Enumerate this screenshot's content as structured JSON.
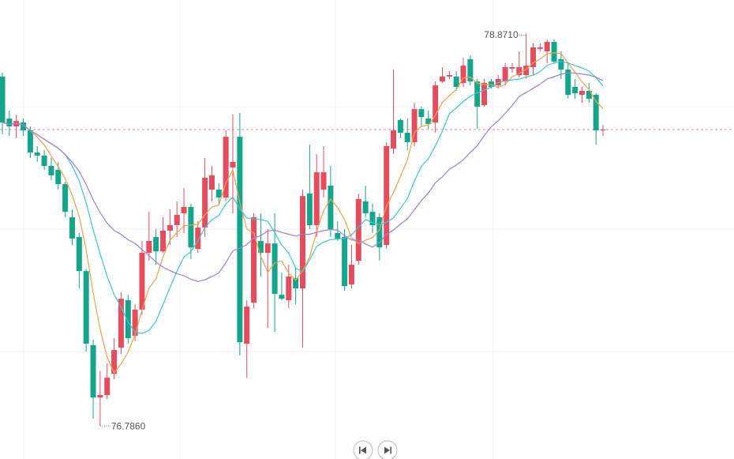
{
  "chart_data": {
    "type": "candlestick",
    "up_color": "#e54d5f",
    "down_color": "#14a58b",
    "ylim": [
      76.61,
      79.05
    ],
    "open": [
      78.643,
      78.42,
      78.378,
      78.399,
      78.357,
      78.239,
      78.223,
      78.168,
      78.147,
      78.071,
      77.895,
      77.79,
      77.609,
      77.215,
      76.937,
      76.95,
      77.063,
      77.202,
      77.454,
      77.265,
      77.404,
      77.706,
      77.79,
      77.714,
      77.824,
      77.853,
      77.916,
      77.95,
      77.727,
      77.84,
      78.042,
      78.042,
      78.0,
      78.16,
      78.323,
      77.223,
      77.441,
      77.769,
      77.706,
      77.756,
      77.483,
      77.454,
      77.572,
      77.517,
      78.021,
      77.853,
      78.042,
      78.063,
      77.811,
      77.79,
      77.538,
      77.664,
      77.979,
      77.924,
      77.895,
      77.748,
      78.26,
      78.412,
      78.344,
      78.294,
      78.47,
      78.42,
      78.399,
      78.617,
      78.643,
      78.643,
      78.609,
      78.735,
      78.617,
      78.491,
      78.617,
      78.596,
      78.617,
      78.685,
      78.651,
      78.651,
      78.693,
      78.79,
      78.777,
      78.827,
      78.735,
      78.68,
      78.588,
      78.546,
      78.567,
      78.546,
      78.357
    ],
    "high": [
      78.664,
      78.462,
      78.441,
      78.42,
      78.378,
      78.273,
      78.252,
      78.21,
      78.189,
      78.084,
      77.937,
      77.811,
      77.622,
      77.244,
      77.076,
      77.118,
      77.252,
      77.496,
      77.483,
      77.433,
      77.769,
      77.924,
      77.832,
      77.895,
      77.937,
      77.979,
      78.05,
      77.966,
      77.874,
      78.21,
      78.168,
      78.076,
      78.357,
      78.441,
      78.449,
      77.454,
      77.916,
      77.916,
      77.832,
      77.916,
      77.601,
      77.643,
      77.622,
      78.042,
      78.281,
      78.231,
      78.273,
      78.168,
      77.874,
      77.832,
      77.748,
      78.021,
      78.063,
      77.966,
      77.916,
      78.294,
      78.68,
      78.42,
      78.42,
      78.504,
      78.483,
      78.462,
      78.617,
      78.693,
      78.672,
      78.672,
      78.743,
      78.756,
      78.63,
      78.63,
      78.63,
      78.651,
      78.714,
      78.714,
      78.777,
      78.871,
      78.819,
      78.819,
      78.84,
      78.84,
      78.777,
      78.714,
      78.63,
      78.588,
      78.609,
      78.554,
      78.386
    ],
    "low": [
      78.336,
      78.328,
      78.315,
      78.328,
      78.21,
      78.189,
      78.147,
      78.092,
      78.042,
      77.895,
      77.748,
      77.517,
      77.181,
      76.824,
      76.786,
      76.929,
      77.034,
      77.168,
      77.223,
      77.236,
      77.378,
      77.664,
      77.643,
      77.706,
      77.748,
      77.79,
      77.811,
      77.672,
      77.706,
      77.79,
      77.979,
      77.958,
      77.979,
      77.916,
      77.16,
      77.042,
      77.412,
      77.58,
      77.307,
      77.286,
      77.454,
      77.412,
      77.433,
      77.202,
      77.832,
      77.79,
      78.0,
      77.79,
      77.769,
      77.504,
      77.517,
      77.643,
      77.895,
      77.811,
      77.664,
      77.727,
      78.231,
      78.315,
      78.252,
      78.273,
      78.378,
      78.365,
      78.344,
      78.609,
      78.63,
      78.567,
      78.588,
      78.596,
      78.365,
      78.483,
      78.58,
      78.58,
      78.596,
      78.664,
      78.638,
      78.63,
      78.651,
      78.777,
      78.714,
      78.714,
      78.63,
      78.525,
      78.525,
      78.504,
      78.504,
      78.281,
      78.328
    ],
    "close": [
      78.399,
      78.378,
      78.407,
      78.357,
      78.239,
      78.223,
      78.168,
      78.118,
      78.071,
      77.924,
      77.782,
      77.609,
      77.223,
      76.937,
      76.95,
      77.042,
      77.189,
      77.462,
      77.252,
      77.404,
      77.706,
      77.769,
      77.714,
      77.824,
      77.853,
      77.908,
      77.95,
      77.735,
      77.84,
      78.105,
      78.118,
      78.0,
      78.323,
      78.189,
      77.231,
      77.42,
      77.895,
      77.706,
      77.756,
      77.488,
      77.462,
      77.58,
      77.517,
      78.008,
      77.853,
      78.134,
      78.134,
      77.832,
      77.782,
      77.529,
      77.643,
      77.992,
      77.916,
      77.853,
      77.735,
      78.273,
      78.357,
      78.344,
      78.294,
      78.47,
      78.428,
      78.391,
      78.596,
      78.643,
      78.651,
      78.588,
      78.701,
      78.617,
      78.483,
      78.609,
      78.588,
      78.63,
      78.693,
      78.693,
      78.693,
      78.701,
      78.798,
      78.798,
      78.827,
      78.722,
      78.68,
      78.546,
      78.554,
      78.567,
      78.525,
      78.357,
      78.361
    ],
    "moving_averages": [
      {
        "period": 5,
        "color": "#f3a04d"
      },
      {
        "period": 10,
        "color": "#3fc5cf"
      },
      {
        "period": 20,
        "color": "#9b80d6"
      }
    ],
    "last_price": 78.361,
    "last_price_color": "#e88a95",
    "annotations": [
      {
        "text": "78.8710",
        "value": 78.871
      },
      {
        "text": "76.7860",
        "value": 76.786
      }
    ]
  }
}
